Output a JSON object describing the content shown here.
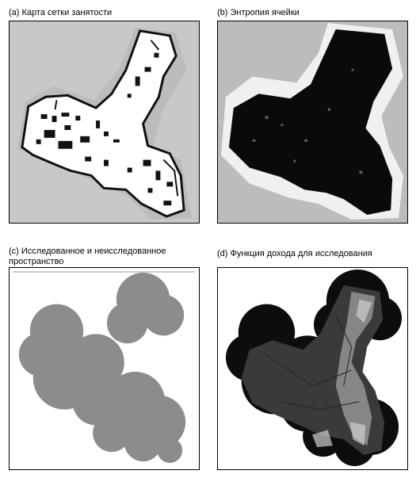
{
  "figure": {
    "panels": [
      {
        "id": "a",
        "caption": "(a) Карта сетки занятости",
        "type": "occupancy-grid-map",
        "colors": {
          "background": "#c8c8c8",
          "free": "#ffffff",
          "obstacle": "#101010"
        }
      },
      {
        "id": "b",
        "caption": "(b) Энтропия ячейки",
        "type": "cell-entropy-map",
        "colors": {
          "background": "#bcbcbc",
          "halo": "#f0f0f0",
          "known": "#0a0a0a"
        }
      },
      {
        "id": "c",
        "caption": "(c) Исследованное и неисследованное пространство",
        "type": "explored-region-map",
        "colors": {
          "background": "#ffffff",
          "explored": "#8c8c8c"
        }
      },
      {
        "id": "d",
        "caption": "(d) Функция дохода для исследования",
        "type": "exploration-gain-map",
        "colors": {
          "background": "#ffffff",
          "band_outer": "#0d0d0d",
          "band_mid": "#3a3a3a",
          "band_high": "#9a9a9a"
        }
      }
    ]
  }
}
